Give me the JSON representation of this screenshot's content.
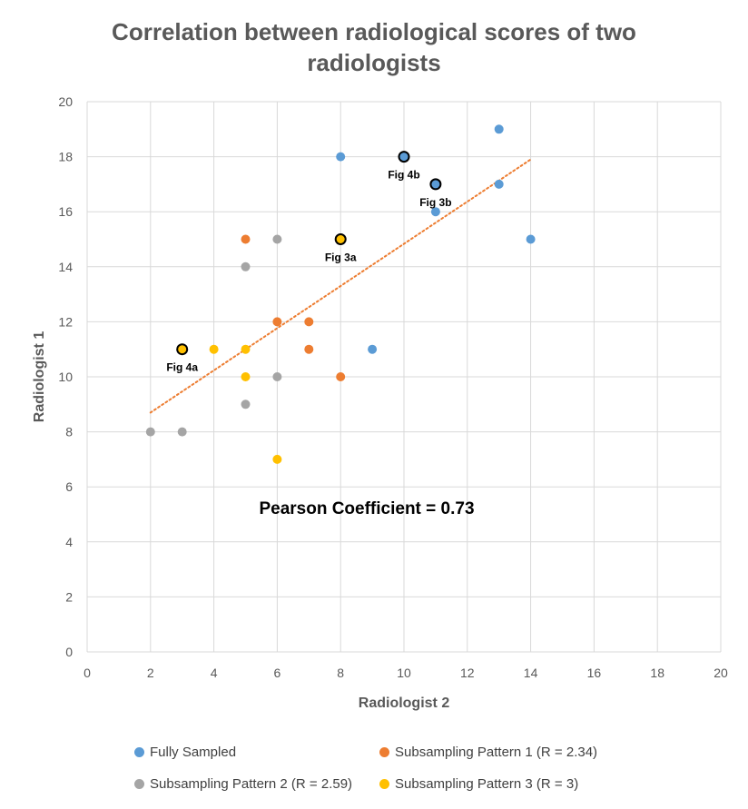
{
  "chart_data": {
    "type": "scatter",
    "title": "Correlation between radiological scores of two radiologists",
    "xlabel": "Radiologist 2",
    "ylabel": "Radiologist 1",
    "xlim": [
      0,
      20
    ],
    "ylim": [
      0,
      20
    ],
    "xticks": [
      "0",
      "2",
      "4",
      "6",
      "8",
      "10",
      "12",
      "14",
      "16",
      "18",
      "20"
    ],
    "yticks": [
      "0",
      "2",
      "4",
      "6",
      "8",
      "10",
      "12",
      "14",
      "16",
      "18",
      "20"
    ],
    "grid": true,
    "legend_position": "bottom",
    "series": [
      {
        "name": "Fully Sampled",
        "color": "#5B9BD5",
        "points": [
          [
            8,
            18
          ],
          [
            10,
            18
          ],
          [
            11,
            17
          ],
          [
            11,
            16
          ],
          [
            13,
            19
          ],
          [
            13,
            17
          ],
          [
            14,
            15
          ],
          [
            9,
            11
          ]
        ]
      },
      {
        "name": "Subsampling Pattern 1 (R = 2.34)",
        "color": "#ED7D31",
        "points": [
          [
            5,
            15
          ],
          [
            6,
            12
          ],
          [
            7,
            12
          ],
          [
            7,
            11
          ],
          [
            8,
            10
          ]
        ]
      },
      {
        "name": "Subsampling Pattern 2 (R = 2.59)",
        "color": "#A5A5A5",
        "points": [
          [
            6,
            15
          ],
          [
            5,
            14
          ],
          [
            6,
            10
          ],
          [
            5,
            9
          ],
          [
            2,
            8
          ],
          [
            3,
            8
          ]
        ]
      },
      {
        "name": "Subsampling Pattern 3 (R = 3)",
        "color": "#FFC000",
        "points": [
          [
            3,
            11
          ],
          [
            4,
            11
          ],
          [
            5,
            11
          ],
          [
            5,
            10
          ],
          [
            8,
            15
          ],
          [
            6,
            7
          ]
        ]
      }
    ],
    "trendline": {
      "style": "dotted",
      "color": "#ED7D31",
      "from": [
        2,
        8.7
      ],
      "to": [
        14,
        17.9
      ]
    },
    "annotations": [
      {
        "text": "Fig 4b",
        "x": 10,
        "y": 18,
        "series": 0
      },
      {
        "text": "Fig 3b",
        "x": 11,
        "y": 17,
        "series": 0
      },
      {
        "text": "Fig 3a",
        "x": 8,
        "y": 15,
        "series": 3
      },
      {
        "text": "Fig 4a",
        "x": 3,
        "y": 11,
        "series": 3
      }
    ],
    "note": "Pearson Coefficient = 0.73"
  }
}
